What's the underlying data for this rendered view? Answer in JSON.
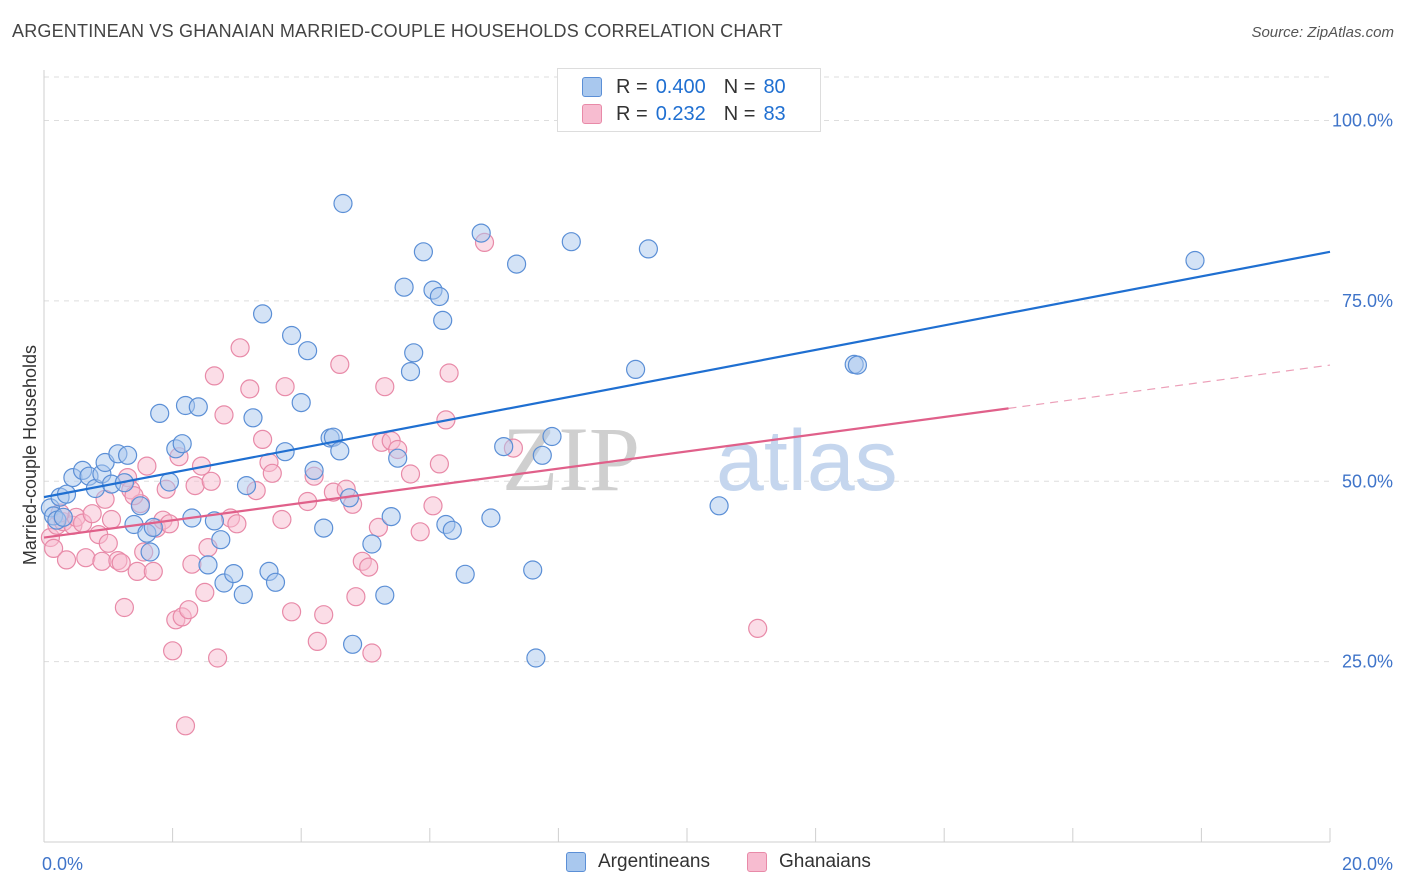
{
  "header": {
    "title": "ARGENTINEAN VS GHANAIAN MARRIED-COUPLE HOUSEHOLDS CORRELATION CHART",
    "source": "Source: ZipAtlas.com"
  },
  "legend": {
    "rows": [
      {
        "r_label": "R = ",
        "r_value": "0.400",
        "n_label": "N = ",
        "n_value": "80"
      },
      {
        "r_label": "R = ",
        "r_value": "0.232",
        "n_label": "N = ",
        "n_value": "83"
      }
    ]
  },
  "bottom_legend": {
    "items": [
      {
        "label": "Argentineans"
      },
      {
        "label": "Ghanaians"
      }
    ]
  },
  "watermark": {
    "zip": "ZIP",
    "atlas": "atlas"
  },
  "colors": {
    "blue_fill": "#a9c8ee",
    "blue_stroke": "#5b8fd6",
    "blue_line": "#1f6fd1",
    "pink_fill": "#f7bcd0",
    "pink_stroke": "#e88aa8",
    "pink_line": "#e0608a",
    "axis_text": "#3f74c9",
    "grid": "#dddddd"
  },
  "chart_data": {
    "type": "scatter",
    "title": "ARGENTINEAN VS GHANAIAN MARRIED-COUPLE HOUSEHOLDS CORRELATION CHART",
    "xlabel": "",
    "ylabel": "Married-couple Households",
    "xlim": [
      0,
      20
    ],
    "ylim": [
      0,
      107
    ],
    "x_tick_labels": [
      {
        "value": 0,
        "label": "0.0%"
      },
      {
        "value": 20,
        "label": "20.0%"
      }
    ],
    "y_tick_labels": [
      {
        "value": 100,
        "label": "100.0%"
      },
      {
        "value": 75,
        "label": "75.0%"
      },
      {
        "value": 50,
        "label": "50.0%"
      },
      {
        "value": 25,
        "label": "25.0%"
      }
    ],
    "series": [
      {
        "name": "Argentineans",
        "r": 0.4,
        "n": 80,
        "trend": {
          "x": [
            0,
            20
          ],
          "y": [
            47.8,
            81.8
          ]
        },
        "points": [
          [
            0.1,
            46.3
          ],
          [
            0.15,
            45.2
          ],
          [
            0.2,
            44.6
          ],
          [
            0.25,
            47.8
          ],
          [
            0.35,
            48.2
          ],
          [
            0.45,
            50.5
          ],
          [
            0.6,
            51.5
          ],
          [
            0.7,
            50.7
          ],
          [
            0.8,
            49.0
          ],
          [
            0.9,
            51.0
          ],
          [
            0.95,
            52.6
          ],
          [
            1.05,
            49.6
          ],
          [
            1.15,
            53.8
          ],
          [
            1.25,
            49.8
          ],
          [
            1.3,
            53.6
          ],
          [
            1.4,
            44.0
          ],
          [
            1.5,
            46.6
          ],
          [
            1.6,
            42.8
          ],
          [
            1.65,
            40.2
          ],
          [
            1.7,
            43.6
          ],
          [
            1.8,
            59.4
          ],
          [
            1.95,
            49.9
          ],
          [
            2.05,
            54.5
          ],
          [
            2.15,
            55.2
          ],
          [
            2.2,
            60.5
          ],
          [
            2.3,
            44.9
          ],
          [
            2.4,
            60.3
          ],
          [
            2.55,
            38.4
          ],
          [
            2.65,
            44.5
          ],
          [
            2.75,
            41.9
          ],
          [
            2.8,
            35.9
          ],
          [
            2.95,
            37.2
          ],
          [
            3.1,
            34.3
          ],
          [
            3.15,
            49.4
          ],
          [
            3.25,
            58.8
          ],
          [
            3.4,
            73.2
          ],
          [
            3.5,
            37.5
          ],
          [
            3.6,
            36.0
          ],
          [
            3.75,
            54.1
          ],
          [
            3.85,
            70.2
          ],
          [
            4.0,
            60.9
          ],
          [
            4.1,
            68.1
          ],
          [
            4.2,
            51.5
          ],
          [
            4.35,
            43.5
          ],
          [
            4.45,
            56.0
          ],
          [
            4.5,
            56.1
          ],
          [
            4.6,
            54.2
          ],
          [
            4.65,
            88.5
          ],
          [
            4.75,
            47.7
          ],
          [
            4.8,
            27.4
          ],
          [
            5.1,
            41.3
          ],
          [
            5.3,
            34.2
          ],
          [
            5.4,
            45.1
          ],
          [
            5.5,
            53.2
          ],
          [
            5.6,
            76.9
          ],
          [
            5.7,
            65.2
          ],
          [
            5.75,
            67.8
          ],
          [
            5.9,
            81.8
          ],
          [
            6.05,
            76.5
          ],
          [
            6.15,
            75.6
          ],
          [
            6.2,
            72.3
          ],
          [
            6.25,
            44.0
          ],
          [
            6.35,
            43.2
          ],
          [
            6.55,
            37.1
          ],
          [
            6.8,
            84.4
          ],
          [
            6.95,
            44.9
          ],
          [
            7.15,
            54.8
          ],
          [
            7.35,
            80.1
          ],
          [
            7.6,
            37.7
          ],
          [
            7.65,
            25.5
          ],
          [
            7.75,
            53.6
          ],
          [
            7.9,
            56.2
          ],
          [
            8.2,
            83.2
          ],
          [
            9.2,
            65.5
          ],
          [
            9.4,
            82.2
          ],
          [
            10.5,
            46.6
          ],
          [
            12.6,
            66.2
          ],
          [
            12.65,
            66.1
          ],
          [
            17.9,
            80.6
          ],
          [
            0.3,
            45.0
          ]
        ]
      },
      {
        "name": "Ghanaians",
        "r": 0.232,
        "n": 83,
        "trend": {
          "x": [
            0,
            15
          ],
          "y": [
            42.2,
            60.1
          ]
        },
        "trend_dashed": {
          "x": [
            15,
            20
          ],
          "y": [
            60.1,
            66.1
          ]
        },
        "points": [
          [
            0.1,
            42.2
          ],
          [
            0.15,
            40.7
          ],
          [
            0.2,
            43.9
          ],
          [
            0.3,
            44.4
          ],
          [
            0.35,
            39.1
          ],
          [
            0.45,
            43.9
          ],
          [
            0.5,
            45.0
          ],
          [
            0.6,
            44.2
          ],
          [
            0.65,
            39.4
          ],
          [
            0.75,
            45.5
          ],
          [
            0.85,
            42.6
          ],
          [
            0.9,
            38.9
          ],
          [
            0.95,
            47.5
          ],
          [
            1.0,
            41.4
          ],
          [
            1.05,
            44.7
          ],
          [
            1.15,
            39.0
          ],
          [
            1.2,
            38.7
          ],
          [
            1.25,
            32.5
          ],
          [
            1.3,
            50.5
          ],
          [
            1.35,
            48.8
          ],
          [
            1.45,
            37.5
          ],
          [
            1.5,
            46.9
          ],
          [
            1.55,
            40.2
          ],
          [
            1.6,
            52.1
          ],
          [
            1.7,
            37.5
          ],
          [
            1.75,
            43.5
          ],
          [
            1.85,
            44.6
          ],
          [
            1.9,
            48.9
          ],
          [
            1.95,
            44.1
          ],
          [
            2.0,
            26.5
          ],
          [
            2.05,
            30.8
          ],
          [
            2.1,
            53.4
          ],
          [
            2.15,
            31.2
          ],
          [
            2.2,
            16.1
          ],
          [
            2.25,
            32.2
          ],
          [
            2.3,
            38.5
          ],
          [
            2.35,
            49.4
          ],
          [
            2.45,
            52.1
          ],
          [
            2.5,
            34.6
          ],
          [
            2.6,
            50.0
          ],
          [
            2.65,
            64.6
          ],
          [
            2.7,
            25.5
          ],
          [
            2.8,
            59.2
          ],
          [
            2.9,
            44.9
          ],
          [
            3.0,
            44.1
          ],
          [
            3.05,
            68.5
          ],
          [
            3.2,
            62.8
          ],
          [
            3.3,
            48.7
          ],
          [
            3.4,
            55.8
          ],
          [
            3.5,
            52.6
          ],
          [
            3.55,
            51.1
          ],
          [
            3.7,
            44.7
          ],
          [
            3.75,
            63.1
          ],
          [
            3.85,
            31.9
          ],
          [
            4.2,
            50.7
          ],
          [
            4.25,
            27.8
          ],
          [
            4.35,
            31.5
          ],
          [
            4.5,
            48.5
          ],
          [
            4.6,
            66.2
          ],
          [
            4.7,
            48.9
          ],
          [
            4.8,
            46.8
          ],
          [
            4.85,
            34.0
          ],
          [
            4.95,
            38.9
          ],
          [
            5.05,
            38.1
          ],
          [
            5.1,
            26.2
          ],
          [
            5.2,
            43.6
          ],
          [
            5.25,
            55.4
          ],
          [
            5.3,
            63.1
          ],
          [
            5.4,
            55.6
          ],
          [
            5.5,
            54.4
          ],
          [
            5.7,
            51.0
          ],
          [
            5.85,
            43.0
          ],
          [
            6.05,
            46.6
          ],
          [
            6.15,
            52.4
          ],
          [
            6.25,
            58.5
          ],
          [
            6.3,
            65.0
          ],
          [
            6.85,
            83.1
          ],
          [
            7.3,
            54.6
          ],
          [
            11.1,
            29.6
          ],
          [
            0.25,
            45.6
          ],
          [
            1.4,
            48.0
          ],
          [
            2.55,
            40.8
          ],
          [
            4.1,
            47.2
          ]
        ]
      }
    ]
  }
}
